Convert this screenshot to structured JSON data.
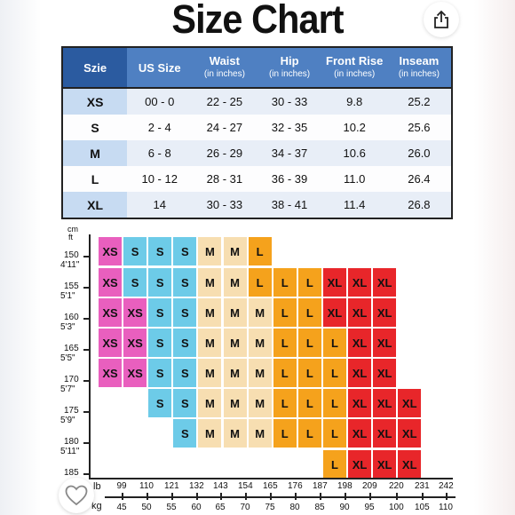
{
  "title": "Size Chart",
  "icons": {
    "share": "share-icon",
    "like": "heart-icon"
  },
  "table": {
    "headers": [
      {
        "label": "Szie",
        "sub": ""
      },
      {
        "label": "US Size",
        "sub": ""
      },
      {
        "label": "Waist",
        "sub": "(in inches)"
      },
      {
        "label": "Hip",
        "sub": "(in inches)"
      },
      {
        "label": "Front Rise",
        "sub": "(in inches)"
      },
      {
        "label": "Inseam",
        "sub": "(in inches)"
      }
    ],
    "rows": [
      [
        "XS",
        "00 - 0",
        "22 - 25",
        "30 - 33",
        "9.8",
        "25.2"
      ],
      [
        "S",
        "2 - 4",
        "24 - 27",
        "32 - 35",
        "10.2",
        "25.6"
      ],
      [
        "M",
        "6 - 8",
        "26 - 29",
        "34 - 37",
        "10.6",
        "26.0"
      ],
      [
        "L",
        "10 - 12",
        "28 - 31",
        "36 - 39",
        "11.0",
        "26.4"
      ],
      [
        "XL",
        "14",
        "30 - 33",
        "38 - 41",
        "11.4",
        "26.8"
      ]
    ]
  },
  "grid": {
    "colors": {
      "XS": "#e95fbe",
      "S": "#6dcbe8",
      "M": "#f7deb1",
      "L": "#f5a21c",
      "XL": "#e8262a"
    },
    "height_axis": {
      "unit_cm": "cm",
      "unit_ft": "ft",
      "cm_labels": [
        "150",
        "155",
        "160",
        "165",
        "170",
        "175",
        "180",
        "185"
      ],
      "ft_labels": [
        "4'11\"",
        "5'1\"",
        "5'3\"",
        "5'5\"",
        "5'7\"",
        "5'9\"",
        "5'11\""
      ]
    },
    "weight_axis": {
      "unit_lb": "lb",
      "unit_kg": "kg",
      "lb_labels": [
        "99",
        "110",
        "121",
        "132",
        "143",
        "154",
        "165",
        "176",
        "187",
        "198",
        "209",
        "220",
        "231",
        "242"
      ],
      "kg_labels": [
        "45",
        "50",
        "55",
        "60",
        "65",
        "70",
        "75",
        "80",
        "85",
        "90",
        "95",
        "100",
        "105",
        "110"
      ]
    },
    "rows": [
      [
        "XS",
        "S",
        "S",
        "S",
        "M",
        "M",
        "L",
        "",
        "",
        "",
        "",
        "",
        ""
      ],
      [
        "XS",
        "S",
        "S",
        "S",
        "M",
        "M",
        "L",
        "L",
        "L",
        "XL",
        "XL",
        "XL",
        ""
      ],
      [
        "XS",
        "XS",
        "S",
        "S",
        "M",
        "M",
        "M",
        "L",
        "L",
        "XL",
        "XL",
        "XL",
        ""
      ],
      [
        "XS",
        "XS",
        "S",
        "S",
        "M",
        "M",
        "M",
        "L",
        "L",
        "L",
        "XL",
        "XL",
        ""
      ],
      [
        "XS",
        "XS",
        "S",
        "S",
        "M",
        "M",
        "M",
        "L",
        "L",
        "L",
        "XL",
        "XL",
        ""
      ],
      [
        "",
        "",
        "S",
        "S",
        "M",
        "M",
        "M",
        "L",
        "L",
        "L",
        "XL",
        "XL",
        "XL"
      ],
      [
        "",
        "",
        "",
        "S",
        "M",
        "M",
        "M",
        "L",
        "L",
        "L",
        "XL",
        "XL",
        "XL"
      ],
      [
        "",
        "",
        "",
        "",
        "",
        "",
        "",
        "",
        "",
        "L",
        "XL",
        "XL",
        "XL"
      ]
    ]
  }
}
